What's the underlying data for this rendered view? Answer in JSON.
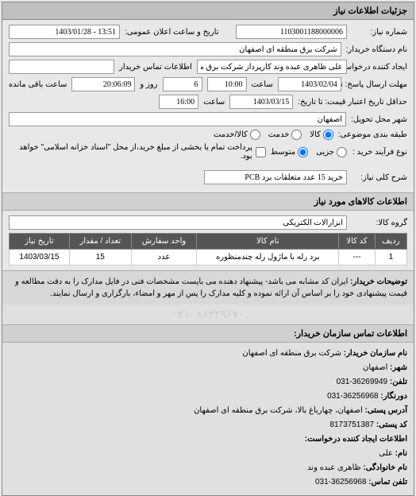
{
  "panel_title": "جزئیات اطلاعات نیاز",
  "fields": {
    "request_number_label": "شماره نیاز:",
    "request_number": "1103001188000006",
    "announce_date_label": "تاریخ و ساعت اعلان عمومی:",
    "announce_date": "13:51 - 1403/01/28",
    "buyer_org_label": "نام دستگاه خریدار:",
    "buyer_org": "شرکت برق منطقه ای اصفهان",
    "requester_label": "ایجاد کننده درخواست:",
    "requester": "علی ظاهری عبده وند کارپرداز شرکت برق منطقه ای اصفهان",
    "contact_info_label": "اطلاعات تماس خریدار",
    "deadline_label": "مهلت ارسال پاسخ: تا تاریخ:",
    "deadline_date": "1403/02/04",
    "time_label": "ساعت",
    "deadline_time": "10:00",
    "days_label": "روز و",
    "days": "6",
    "remaining_time_label": "ساعت باقی مانده",
    "remaining_time": "20:06:09",
    "validity_label": "حداقل تاریخ اعتبار قیمت: تا تاریخ:",
    "validity_date": "1403/03/15",
    "validity_time": "16:00",
    "delivery_city_label": "شهر محل تحویل:",
    "delivery_city": "اصفهان",
    "category_label": "طبقه بندی موضوعی:",
    "category_goods": "کالا",
    "category_service": "خدمت",
    "category_both": "کالا/خدمت",
    "purchase_type_label": "نوع فرآیند خرید :",
    "type_small": "جزیی",
    "type_medium": "متوسط",
    "payment_note": "پرداخت تمام یا بخشی از مبلغ خرید،از محل \"اسناد خزانه اسلامی\" خواهد بود.",
    "need_desc_label": "شرح کلی نیاز:",
    "need_desc": "خرید 15 عدد متعلقات برد PCB",
    "goods_section_title": "اطلاعات کالاهای مورد نیاز",
    "goods_group_label": "گروه کالا:",
    "goods_group": "ابزارآلات الکتریکی",
    "notes_label": "توضیحات خریدار:",
    "notes_text": "ایران کد مشابه می باشد- پیشنهاد دهنده می بایست مشخصات فنی در فایل مدارک را به دقت مطالعه و قیمت پیشنهادی خود را بر اساس آن ارائه نموده و کلیه مدارک را پس از مهر و امضاء، بارگزاری و ارسال نمایند."
  },
  "table": {
    "columns": [
      "ردیف",
      "کد کالا",
      "نام کالا",
      "واحد سفارش",
      "تعداد / مقدار",
      "تاریخ نیاز"
    ],
    "rows": [
      [
        "1",
        "---",
        "برد رله با ماژول رله چندمنظوره",
        "عدد",
        "15",
        "1403/03/15"
      ]
    ]
  },
  "contact": {
    "section_title": "اطلاعات تماس سازمان خریدار:",
    "org_label": "نام سازمان خریدار:",
    "org": "شرکت برق منطقه ای اصفهان",
    "city_label": "شهر:",
    "city": "اصفهان",
    "phone_label": "تلفن:",
    "phone": "36269949-031",
    "fax_label": "دورنگار:",
    "fax": "36256968-031",
    "postal_label": "آدرس پستی:",
    "postal": "اصفهان، چهارباغ بالا، شرکت برق منطقه ای اصفهان",
    "zip_label": "کد پستی:",
    "zip": "8173751387",
    "creator_section_label": "اطلاعات ایجاد کننده درخواست:",
    "name_label": "نام:",
    "name": "علی",
    "family_label": "نام خانوادگی:",
    "family": "ظاهری عبده وند",
    "contact_phone_label": "تلفن تماس:",
    "contact_phone": "36256968-031"
  },
  "footer_phone": "۸۸۳۴۹۶۷۰ -۰۲۱"
}
